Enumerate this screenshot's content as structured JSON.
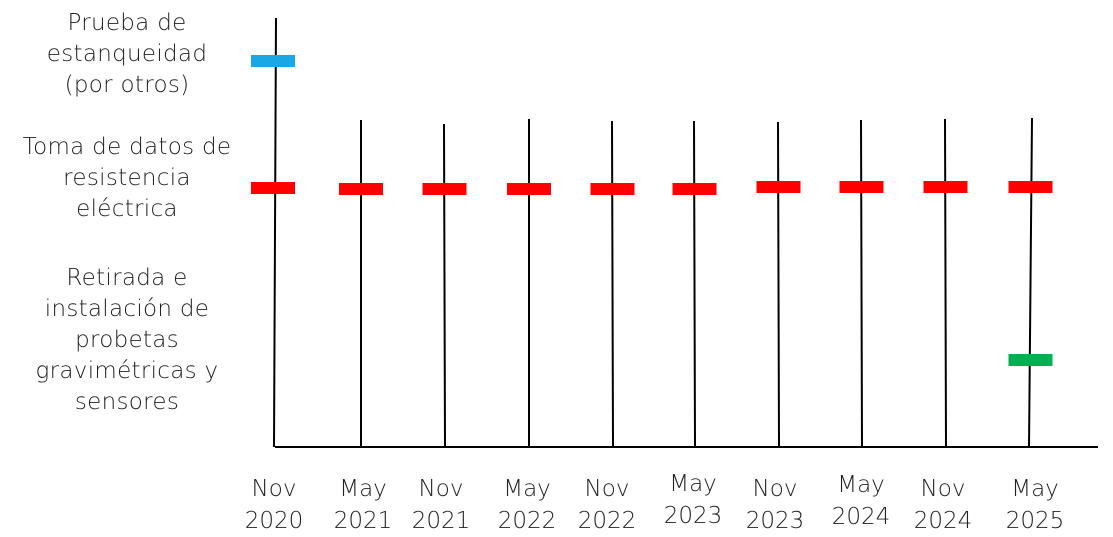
{
  "rows": [
    {
      "lines": [
        "Prueba de",
        "estanqueidad",
        "(por otros)"
      ],
      "color": "#1aa7e6"
    },
    {
      "lines": [
        "Toma de datos de",
        "resistencia",
        "eléctrica"
      ],
      "color": "#ff0000"
    },
    {
      "lines": [
        "Retirada e",
        "instalación de",
        "probetas",
        "gravimétricas y",
        "sensores"
      ],
      "color": "#00b050"
    }
  ],
  "dates": [
    {
      "month": "Nov",
      "year": "2020"
    },
    {
      "month": "May",
      "year": "2021"
    },
    {
      "month": "Nov",
      "year": "2021"
    },
    {
      "month": "May",
      "year": "2022"
    },
    {
      "month": "Nov",
      "year": "2022"
    },
    {
      "month": "May",
      "year": "2023"
    },
    {
      "month": "Nov",
      "year": "2023"
    },
    {
      "month": "May",
      "year": "2024"
    },
    {
      "month": "Nov",
      "year": "2024"
    },
    {
      "month": "May",
      "year": "2025"
    }
  ],
  "events": [
    {
      "row": 0,
      "dates": [
        0
      ]
    },
    {
      "row": 1,
      "dates": [
        0,
        1,
        2,
        3,
        4,
        5,
        6,
        7,
        8,
        9
      ]
    },
    {
      "row": 2,
      "dates": [
        9
      ]
    }
  ]
}
